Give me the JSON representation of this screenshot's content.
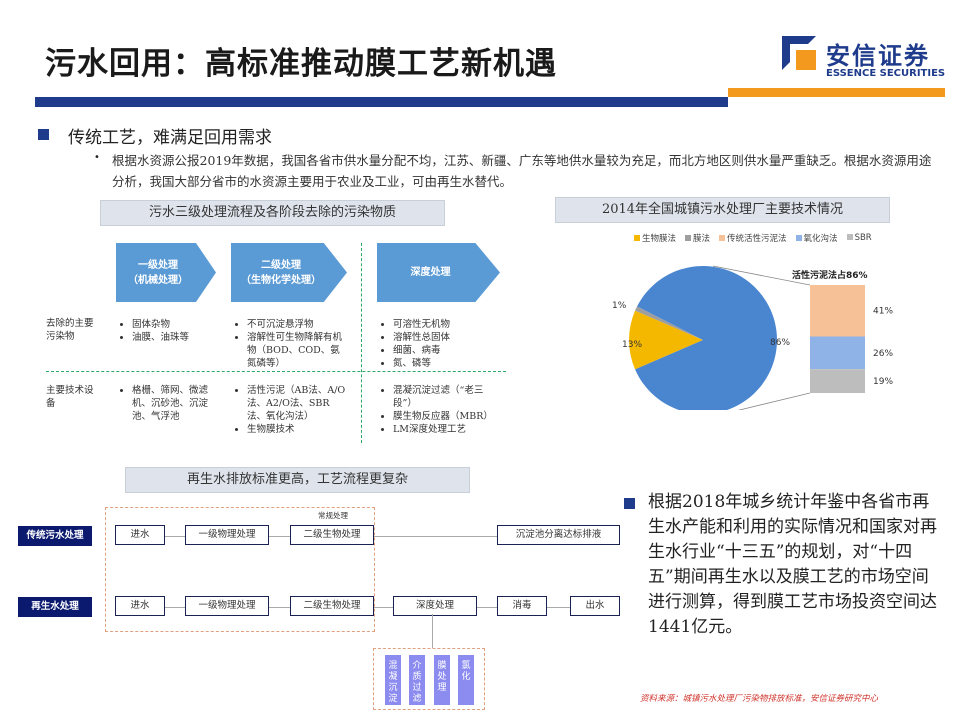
{
  "header": {
    "title": "污水回用：高标准推动膜工艺新机遇",
    "logo_cn": "安信证券",
    "logo_en": "ESSENCE SECURITIES"
  },
  "section1": {
    "heading": "传统工艺，难满足回用需求",
    "bullet": "根据水资源公报2019年数据，我国各省市供水量分配不均，江苏、新疆、广东等地供水量较为充足，而北方地区则供水量严重缺乏。根据水资源用途分析，我国大部分省市的水资源主要用于农业及工业，可由再生水替代。"
  },
  "stages": {
    "caption": "污水三级处理流程及各阶段去除的污染物质",
    "row_labels": [
      "去除的主要污染物",
      "主要技术设备"
    ],
    "columns": [
      {
        "title": "一级处理",
        "subtitle": "（机械处理）",
        "pollutants": [
          "固体杂物",
          "油膜、油珠等"
        ],
        "equipment": [
          "格栅、筛网、微滤机、沉砂池、沉淀池、气浮池"
        ]
      },
      {
        "title": "二级处理",
        "subtitle": "（生物化学处理）",
        "pollutants": [
          "不可沉淀悬浮物",
          "溶解性可生物降解有机物（BOD、COD、氨氮磷等）"
        ],
        "equipment": [
          "活性污泥（AB法、A/O法、A2/O法、SBR法、氧化沟法）",
          "生物膜技术"
        ]
      },
      {
        "title": "深度处理",
        "subtitle": "",
        "pollutants": [
          "可溶性无机物",
          "溶解性总固体",
          "细菌、病毒",
          "氮、磷等"
        ],
        "equipment": [
          "混凝沉淀过滤（“老三段”）",
          "膜生物反应器（MBR）",
          "LM深度处理工艺"
        ]
      }
    ]
  },
  "chart_data": {
    "type": "pie",
    "title": "2014年全国城镇污水处理厂主要技术情况",
    "legend": [
      "生物膜法",
      "膜法",
      "传统活性污泥法",
      "氧化沟法",
      "SBR"
    ],
    "legend_position": "top",
    "slices": [
      {
        "name": "活性污泥法",
        "value": 86,
        "label": "86%",
        "color": "#4a86d0"
      },
      {
        "name": "生物膜法",
        "value": 13,
        "label": "13%",
        "color": "#f5b800"
      },
      {
        "name": "膜法",
        "value": 1,
        "label": "1%",
        "color": "#9e9e9e"
      }
    ],
    "breakdown": {
      "title": "活性污泥法占86%",
      "segments": [
        {
          "name": "传统活性污泥法",
          "value": 41,
          "label": "41%",
          "color": "#f7c197"
        },
        {
          "name": "氧化沟法",
          "value": 26,
          "label": "26%",
          "color": "#8fb3e6"
        },
        {
          "name": "SBR",
          "value": 19,
          "label": "19%",
          "color": "#bdbdbd"
        }
      ]
    },
    "colors": {
      "生物膜法": "#f5b800",
      "膜法": "#9e9e9e",
      "传统活性污泥法": "#f7c197",
      "氧化沟法": "#8fb3e6",
      "SBR": "#bdbdbd"
    }
  },
  "flow": {
    "caption": "再生水排放标准更高，工艺流程更复杂",
    "conventional_label": "常规处理",
    "row1": {
      "label": "传统污水处理",
      "steps": [
        "进水",
        "一级物理处理",
        "二级生物处理",
        "沉淀池分离达标排液"
      ]
    },
    "row2": {
      "label": "再生水处理",
      "steps": [
        "进水",
        "一级物理处理",
        "二级生物处理",
        "深度处理",
        "消毒",
        "出水"
      ]
    },
    "advanced": [
      "混凝沉淀",
      "介质过滤",
      "膜处理",
      "氯化"
    ]
  },
  "section2": {
    "text": "根据2018年城乡统计年鉴中各省市再生水产能和利用的实际情况和国家对再生水行业“十三五”的规划，对“十四五”期间再生水以及膜工艺的市场空间进行测算，得到膜工艺市场投资空间达1441亿元。"
  },
  "footer": {
    "source": "资料来源：城镇污水处理厂污染物排放标准，安信证券研究中心"
  }
}
